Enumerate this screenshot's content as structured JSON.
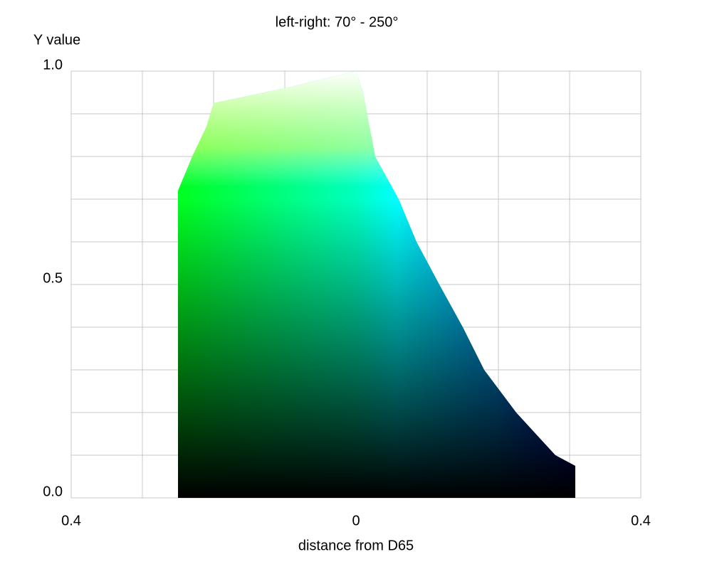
{
  "chart_data": {
    "type": "area",
    "title": "left-right: 70° - 250°",
    "y_label": "Y value",
    "x_label": "distance from D65",
    "xlim": [
      -0.4,
      0.4
    ],
    "ylim": [
      0,
      1
    ],
    "xticks": [
      {
        "value": -0.4,
        "label": "0.4"
      },
      0,
      0.4
    ],
    "yticks": [
      {
        "value": 0,
        "label": "0.0"
      },
      0.5,
      {
        "value": 1,
        "label": "1.0"
      }
    ],
    "grid": true,
    "xgrid": [
      -0.4,
      -0.3,
      -0.2,
      -0.1,
      0,
      0.1,
      0.2,
      0.3,
      0.4
    ],
    "ygrid": [
      0,
      0.1,
      0.2,
      0.3,
      0.4,
      0.5,
      0.6,
      0.7,
      0.8,
      0.9,
      1
    ],
    "x": [
      -0.25,
      -0.25,
      -0.24,
      -0.23,
      -0.21,
      -0.2,
      -0.1,
      -0.05,
      0,
      0.01,
      0.027,
      0.06,
      0.085,
      0.117,
      0.15,
      0.18,
      0.225,
      0.28,
      0.308,
      0.308
    ],
    "values": [
      0,
      0.72,
      0.76,
      0.8,
      0.87,
      0.925,
      0.96,
      0.98,
      1,
      0.95,
      0.8,
      0.7,
      0.6,
      0.5,
      0.4,
      0.3,
      0.2,
      0.1,
      0.075,
      0
    ]
  }
}
